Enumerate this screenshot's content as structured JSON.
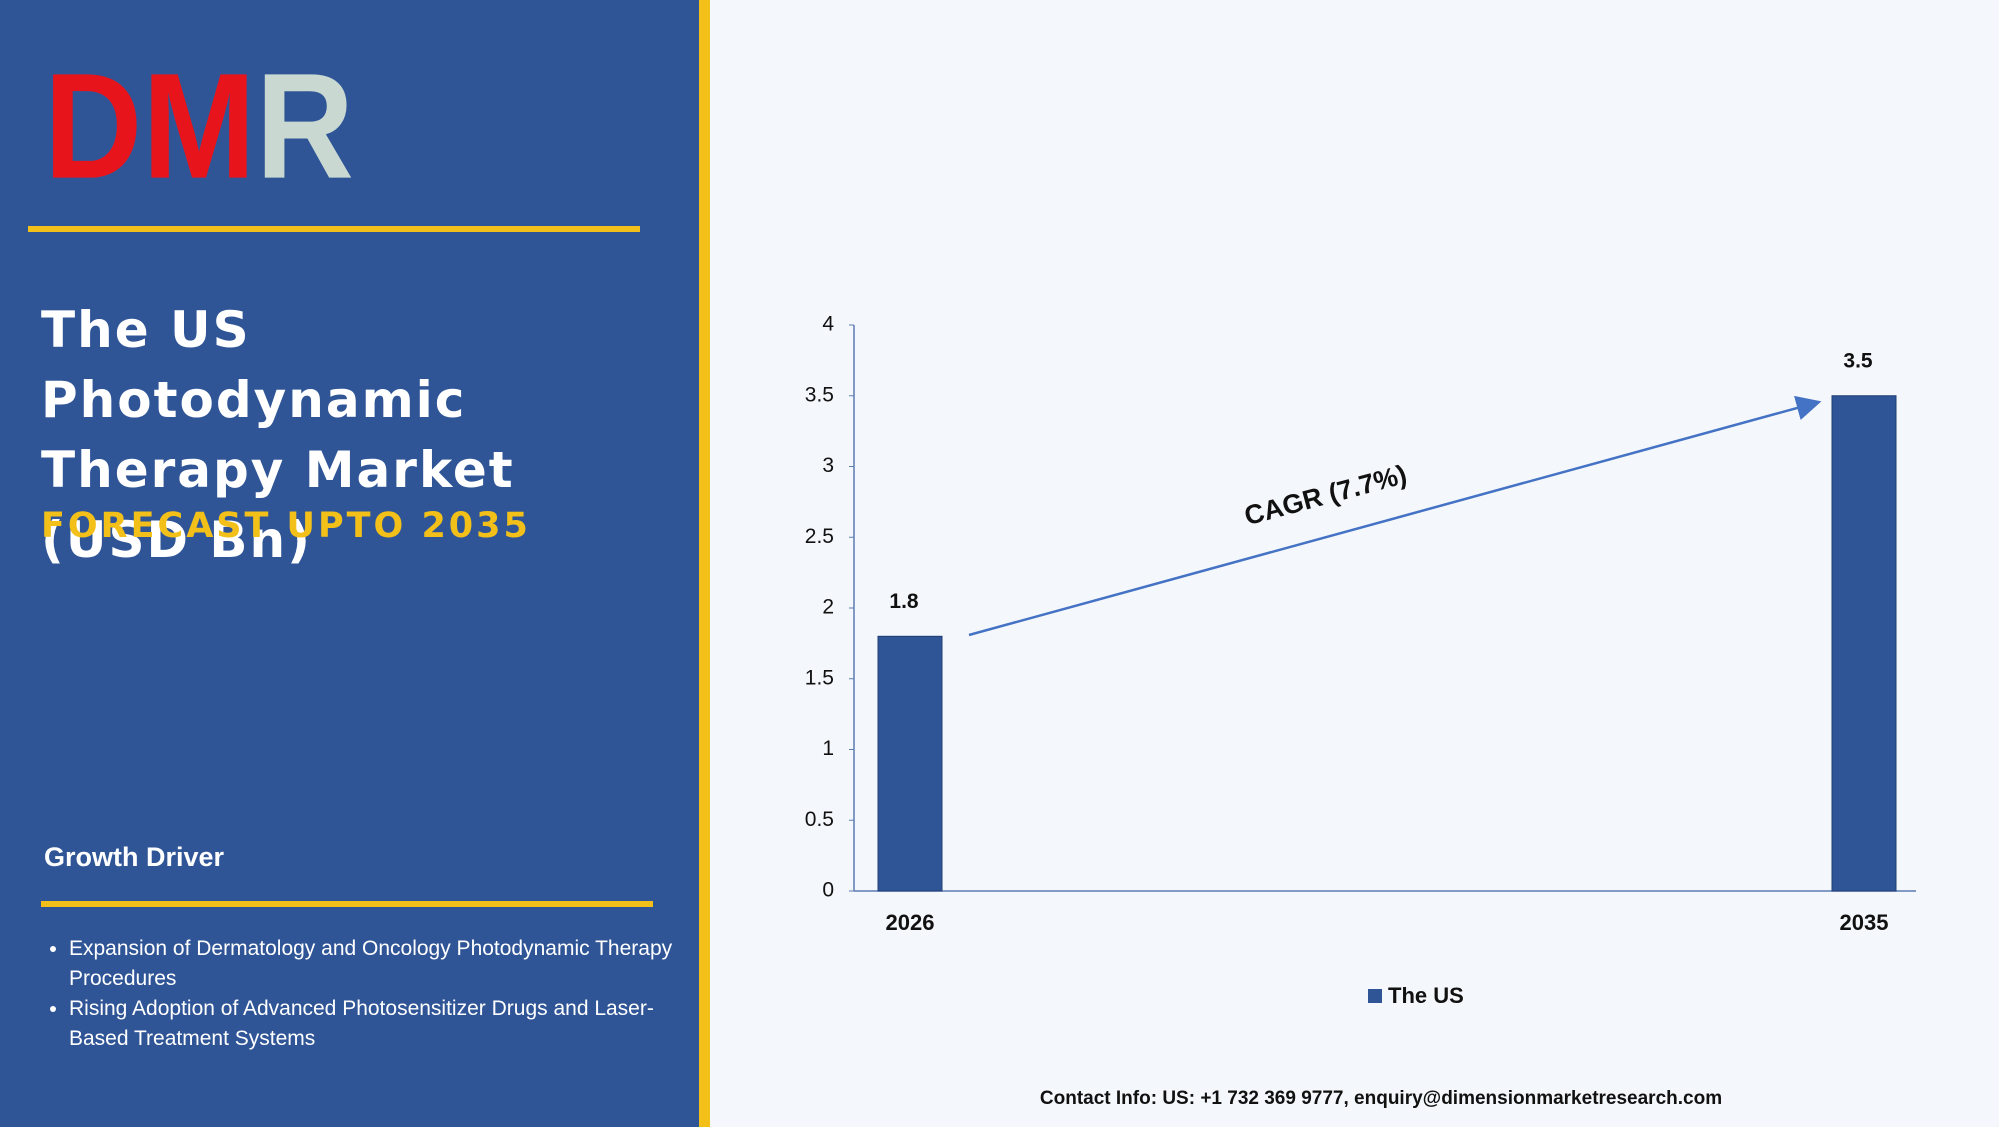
{
  "logo": "DMR",
  "title": "The US Photodynamic Therapy Market (USD Bn)",
  "subtitle": "FORECAST UPTO 2035",
  "growth_driver": {
    "heading": "Growth Driver",
    "items": [
      "Expansion of Dermatology and Oncology Photodynamic Therapy Procedures",
      "Rising Adoption of Advanced Photosensitizer Drugs and Laser-Based Treatment Systems"
    ]
  },
  "chart_data": {
    "type": "bar",
    "categories": [
      "2026",
      "2035"
    ],
    "series": [
      {
        "name": "The US",
        "color": "#2f5597",
        "values": [
          1.8,
          3.5
        ]
      }
    ],
    "ylim": [
      0,
      4
    ],
    "yticks": [
      0,
      0.5,
      1,
      1.5,
      2,
      2.5,
      3,
      3.5,
      4
    ],
    "annotation": "CAGR (7.7%)",
    "legend": "bottom"
  },
  "contact": "Contact Info: US: +1 732 369 9777, enquiry@dimensionmarketresearch.com"
}
